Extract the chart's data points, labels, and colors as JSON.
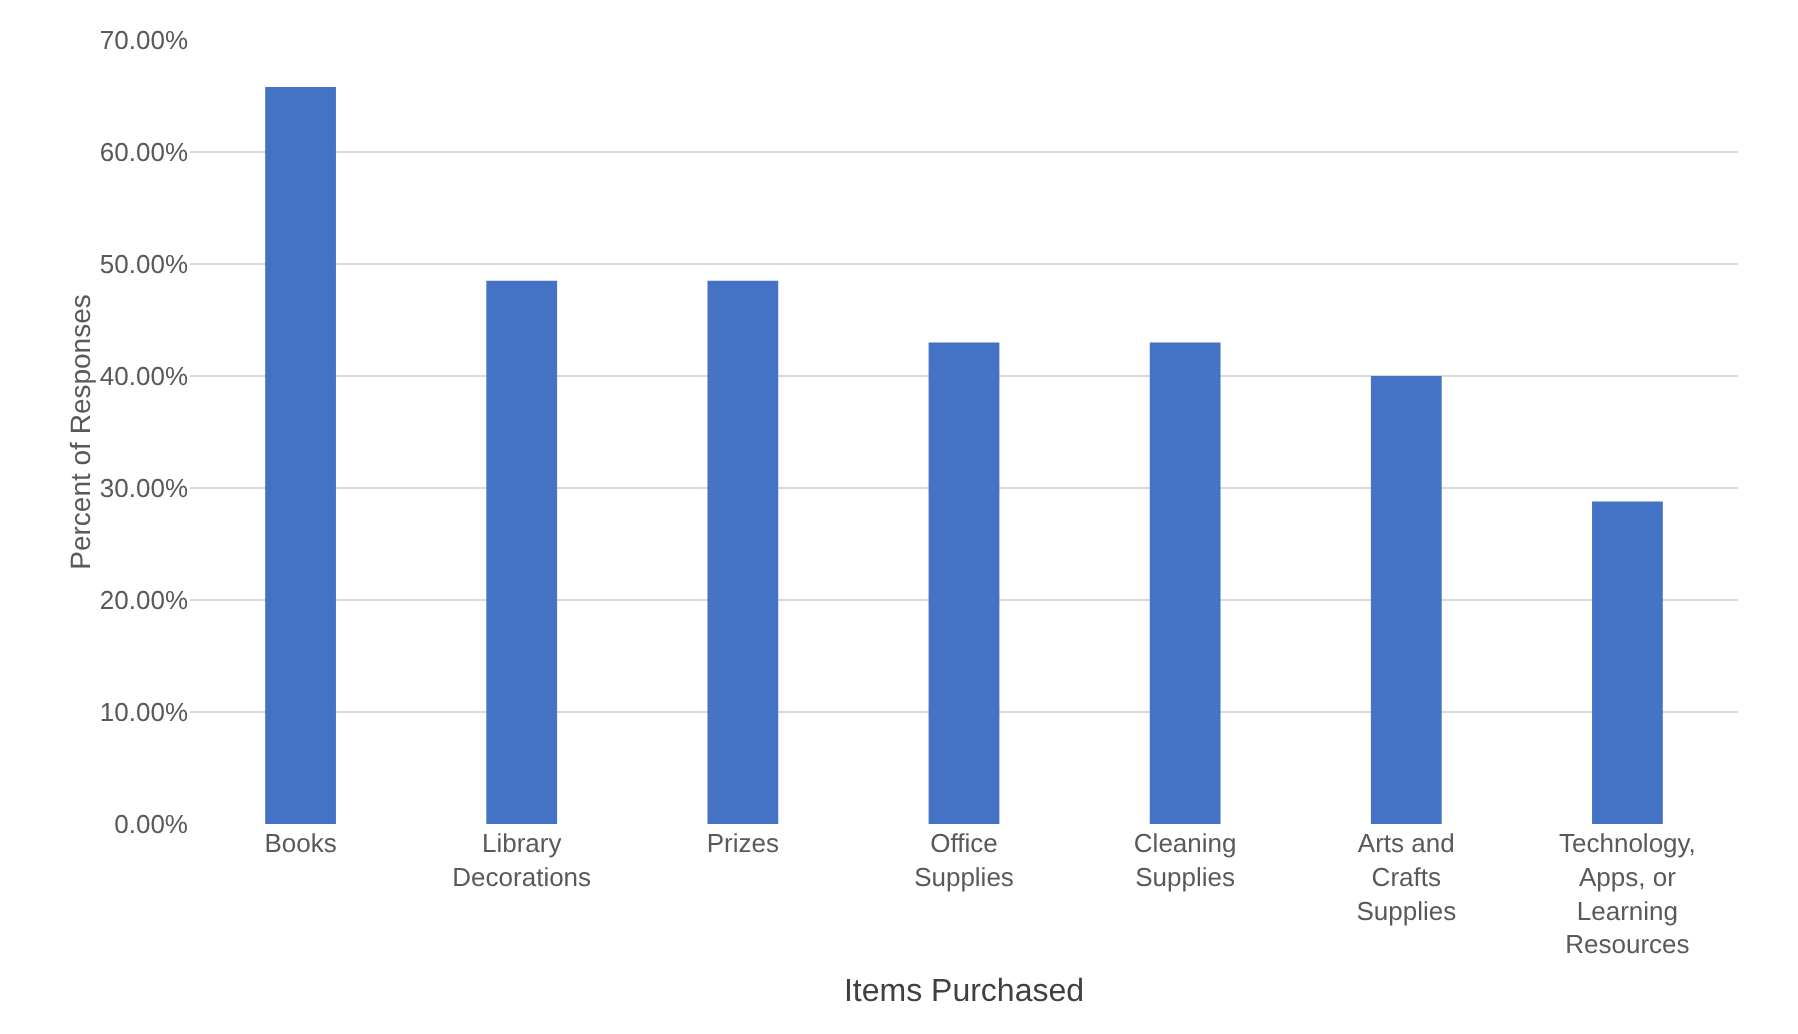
{
  "chart_data": {
    "type": "bar",
    "xlabel": "Items Purchased",
    "ylabel": "Percent of Responses",
    "categories": [
      "Books",
      "Library Decorations",
      "Prizes",
      "Office Supplies",
      "Cleaning Supplies",
      "Arts and Crafts Supplies",
      "Technology, Apps, or Learning Resources"
    ],
    "values": [
      65.8,
      48.5,
      48.5,
      43.0,
      43.0,
      40.0,
      28.8
    ],
    "color": "#4472c4",
    "ylim": [
      0,
      70
    ],
    "yticks": [
      {
        "value": 0,
        "label": "0.00%"
      },
      {
        "value": 10,
        "label": "10.00%"
      },
      {
        "value": 20,
        "label": "20.00%"
      },
      {
        "value": 30,
        "label": "30.00%"
      },
      {
        "value": 40,
        "label": "40.00%"
      },
      {
        "value": 50,
        "label": "50.00%"
      },
      {
        "value": 60,
        "label": "60.00%"
      },
      {
        "value": 70,
        "label": "70.00%"
      }
    ],
    "grid": "y"
  }
}
